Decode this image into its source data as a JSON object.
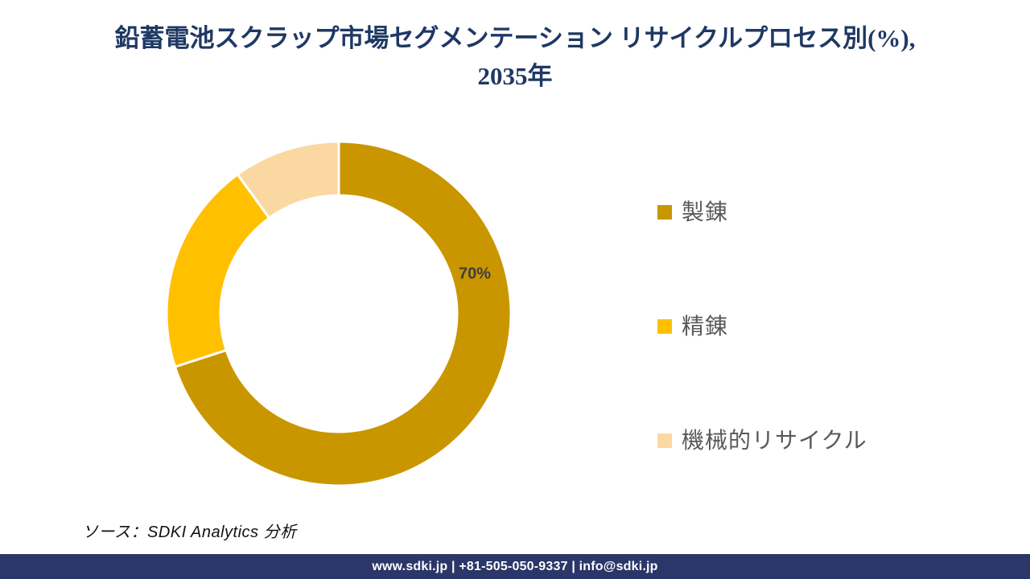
{
  "title": {
    "line1": "鉛蓄電池スクラップ市場セグメンテーション リサイクルプロセス別(%),",
    "line2": "2035年"
  },
  "chart_data": {
    "type": "pie",
    "subtype": "donut",
    "title": "鉛蓄電池スクラップ市場セグメンテーション リサイクルプロセス別(%), 2035年",
    "unit": "%",
    "start_angle_deg": 0,
    "direction": "clockwise",
    "inner_radius_ratio": 0.685,
    "legend_position": "right",
    "slices": [
      {
        "label": "製錬",
        "value": 70,
        "color": "#C99600",
        "data_label": "70%"
      },
      {
        "label": "精錬",
        "value": 20,
        "color": "#FFC000",
        "data_label": ""
      },
      {
        "label": "機械的リサイクル",
        "value": 10,
        "color": "#FBD8A2",
        "data_label": ""
      }
    ]
  },
  "source": {
    "text": "ソース：SDKI Analytics 分析"
  },
  "footer": {
    "text": "www.sdki.jp | +81-505-050-9337 | info@sdki.jp",
    "background": "#2A3768"
  },
  "theme": {
    "title_color": "#1F3864",
    "legend_text_color": "#595959",
    "data_label_color": "#3F3F3F",
    "slice_border_color": "#FFFFFF"
  }
}
